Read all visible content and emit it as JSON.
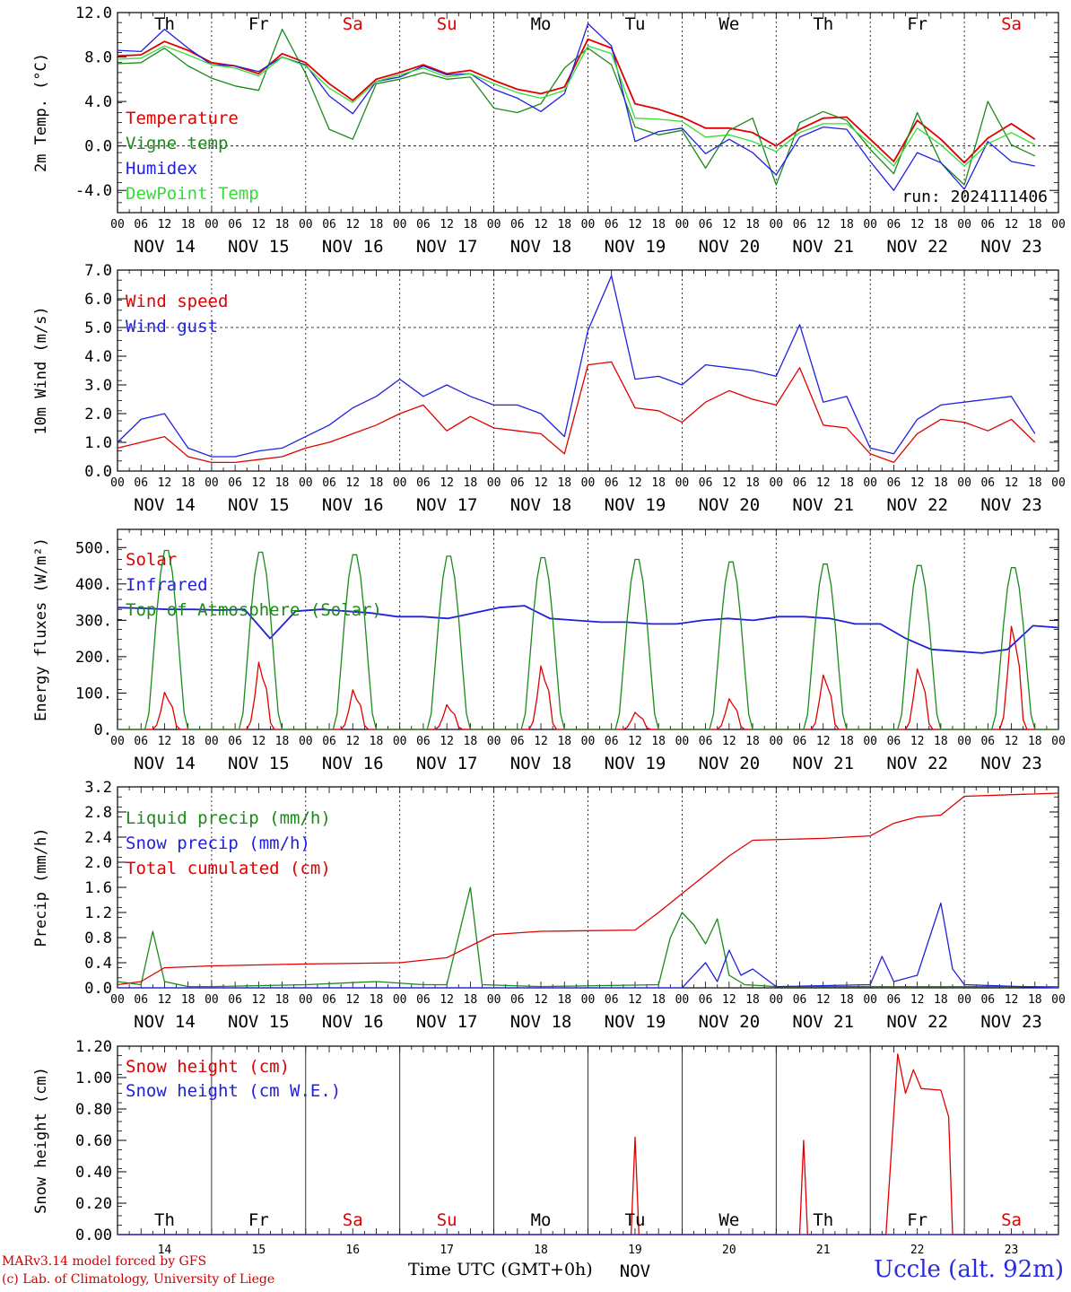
{
  "chart_data": [
    {
      "type": "line",
      "ylabel": "2m Temp. (°C)",
      "ylim": [
        -6,
        12
      ],
      "yticks": [
        "12.0",
        "8.0",
        "4.0",
        "0.0",
        "-4.0"
      ],
      "ytick_values": [
        12,
        8,
        4,
        0,
        -4
      ],
      "dashed_y": [
        0
      ],
      "day_labels": [
        "Th",
        "Fr",
        "Sa",
        "Su",
        "Mo",
        "Tu",
        "We",
        "Th",
        "Fr",
        "Sa"
      ],
      "weekend_days": [
        2,
        3,
        9
      ],
      "run_label": "run: 2024111406",
      "x": [
        0,
        6,
        12,
        18,
        24,
        30,
        36,
        42,
        48,
        54,
        60,
        66,
        72,
        78,
        84,
        90,
        96,
        102,
        108,
        114,
        120,
        126,
        132,
        138,
        144,
        150,
        156,
        162,
        168,
        174,
        180,
        186,
        192,
        198,
        204,
        210,
        216,
        222,
        228,
        234
      ],
      "series": [
        {
          "name": "Temperature",
          "color": "#e00000",
          "values": [
            8.1,
            8.2,
            9.4,
            8.6,
            7.5,
            7.2,
            6.5,
            8.3,
            7.5,
            5.6,
            4.1,
            6.0,
            6.6,
            7.3,
            6.5,
            6.8,
            5.9,
            5.1,
            4.7,
            5.3,
            9.6,
            8.8,
            3.8,
            3.3,
            2.6,
            1.6,
            1.6,
            1.2,
            0.0,
            1.5,
            2.5,
            2.6,
            0.6,
            -1.4,
            2.3,
            0.6,
            -1.5,
            0.7,
            2.0,
            0.6
          ]
        },
        {
          "name": "Vigne temp",
          "color": "#1a8a1a",
          "values": [
            7.4,
            7.5,
            8.8,
            7.2,
            6.1,
            5.4,
            5.0,
            10.5,
            6.5,
            1.5,
            0.6,
            5.6,
            6.0,
            6.6,
            6.0,
            6.2,
            3.4,
            3.0,
            3.8,
            7.0,
            8.8,
            7.3,
            1.7,
            1.0,
            1.4,
            -2.0,
            1.4,
            2.5,
            -3.5,
            2.1,
            3.1,
            2.3,
            -0.3,
            -2.5,
            3.0,
            -1.5,
            -3.5,
            4.0,
            0.1,
            -0.9
          ]
        },
        {
          "name": "Humidex",
          "color": "#2020e0",
          "values": [
            8.6,
            8.5,
            10.5,
            8.8,
            7.3,
            7.2,
            6.7,
            8.0,
            7.3,
            4.5,
            2.9,
            5.8,
            6.2,
            7.2,
            6.4,
            6.5,
            5.1,
            4.3,
            3.1,
            4.7,
            11.0,
            9.0,
            0.4,
            1.3,
            1.6,
            -0.7,
            0.6,
            -0.6,
            -2.6,
            0.8,
            1.7,
            1.5,
            -1.4,
            -4.0,
            -0.6,
            -1.5,
            -3.9,
            0.4,
            -1.4,
            -1.8
          ]
        },
        {
          "name": "DewPoint Temp",
          "color": "#33dd33",
          "values": [
            7.8,
            7.9,
            9.0,
            8.2,
            7.3,
            7.0,
            6.3,
            8.0,
            7.2,
            5.2,
            3.9,
            5.8,
            6.4,
            7.0,
            6.2,
            6.5,
            5.6,
            4.8,
            4.3,
            5.0,
            9.0,
            8.3,
            2.5,
            2.4,
            2.2,
            0.8,
            1.0,
            0.4,
            -0.5,
            1.2,
            2.0,
            2.0,
            0.2,
            -1.8,
            1.6,
            0.1,
            -1.8,
            0.2,
            1.2,
            0.1
          ]
        }
      ]
    },
    {
      "type": "line",
      "ylabel": "10m Wind (m/s)",
      "ylim": [
        0,
        7
      ],
      "yticks": [
        "7.0",
        "6.0",
        "5.0",
        "4.0",
        "3.0",
        "2.0",
        "1.0",
        "0.0"
      ],
      "ytick_values": [
        7,
        6,
        5,
        4,
        3,
        2,
        1,
        0
      ],
      "dashed_y": [
        5
      ],
      "x": [
        0,
        6,
        12,
        18,
        24,
        30,
        36,
        42,
        48,
        54,
        60,
        66,
        72,
        78,
        84,
        90,
        96,
        102,
        108,
        114,
        120,
        126,
        132,
        138,
        144,
        150,
        156,
        162,
        168,
        174,
        180,
        186,
        192,
        198,
        204,
        210,
        216,
        222,
        228,
        234
      ],
      "series": [
        {
          "name": "Wind speed",
          "color": "#e00000",
          "values": [
            0.8,
            1.0,
            1.2,
            0.5,
            0.3,
            0.3,
            0.4,
            0.5,
            0.8,
            1.0,
            1.3,
            1.6,
            2.0,
            2.3,
            1.4,
            1.9,
            1.5,
            1.4,
            1.3,
            0.6,
            3.7,
            3.8,
            2.2,
            2.1,
            1.7,
            2.4,
            2.8,
            2.5,
            2.3,
            3.6,
            1.6,
            1.5,
            0.6,
            0.3,
            1.3,
            1.8,
            1.7,
            1.4,
            1.8,
            1.0
          ]
        },
        {
          "name": "Wind gust",
          "color": "#2020e0",
          "values": [
            1.0,
            1.8,
            2.0,
            0.8,
            0.5,
            0.5,
            0.7,
            0.8,
            1.2,
            1.6,
            2.2,
            2.6,
            3.2,
            2.6,
            3.0,
            2.6,
            2.3,
            2.3,
            2.0,
            1.2,
            4.9,
            6.8,
            3.2,
            3.3,
            3.0,
            3.7,
            3.6,
            3.5,
            3.3,
            5.1,
            2.4,
            2.6,
            0.8,
            0.6,
            1.8,
            2.3,
            2.4,
            2.5,
            2.6,
            1.3
          ]
        }
      ]
    },
    {
      "type": "line",
      "ylabel": "Energy fluxes (W/m²)",
      "ylim": [
        0,
        550
      ],
      "yticks": [
        "500.",
        "400.",
        "300.",
        "200.",
        "100.",
        "0."
      ],
      "ytick_values": [
        500,
        400,
        300,
        200,
        100,
        0
      ],
      "dashed_y": [],
      "series": [
        {
          "name": "Solar",
          "color": "#e00000",
          "daily_peaks": [
            108,
            195,
            115,
            72,
            185,
            50,
            90,
            160,
            178,
            305
          ]
        },
        {
          "name": "Infrared",
          "color": "#2020e0",
          "values": [
            335,
            333,
            330,
            330,
            328,
            330,
            250,
            325,
            330,
            325,
            320,
            310,
            310,
            305,
            320,
            335,
            340,
            305,
            300,
            295,
            295,
            290,
            290,
            300,
            305,
            300,
            310,
            310,
            305,
            290,
            290,
            250,
            220,
            215,
            210,
            220,
            285,
            280
          ]
        },
        {
          "name": "Top of Atmosphere (Solar)",
          "color": "#1a8a1a",
          "daily_peaks": [
            500,
            495,
            488,
            484,
            480,
            475,
            468,
            462,
            458,
            452
          ]
        }
      ]
    },
    {
      "type": "line",
      "ylabel": "Precip (mm/h)",
      "ylim": [
        0,
        3.2
      ],
      "yticks": [
        "3.2",
        "2.8",
        "2.4",
        "2.0",
        "1.6",
        "1.2",
        "0.8",
        "0.4",
        "0.0"
      ],
      "ytick_values": [
        3.2,
        2.8,
        2.4,
        2.0,
        1.6,
        1.2,
        0.8,
        0.4,
        0.0
      ],
      "dashed_y": [],
      "series": [
        {
          "name": "Liquid precip (mm/h)",
          "color": "#1a8a1a",
          "values": [
            [
              0,
              0.1
            ],
            [
              6,
              0.05
            ],
            [
              9,
              0.9
            ],
            [
              12,
              0.1
            ],
            [
              18,
              0.02
            ],
            [
              24,
              0.02
            ],
            [
              48,
              0.05
            ],
            [
              66,
              0.1
            ],
            [
              78,
              0.05
            ],
            [
              84,
              0.05
            ],
            [
              90,
              1.6
            ],
            [
              93,
              0.05
            ],
            [
              108,
              0.02
            ],
            [
              138,
              0.05
            ],
            [
              141,
              0.8
            ],
            [
              144,
              1.2
            ],
            [
              147,
              1.0
            ],
            [
              150,
              0.7
            ],
            [
              153,
              1.1
            ],
            [
              156,
              0.2
            ],
            [
              160,
              0.05
            ],
            [
              168,
              0.02
            ],
            [
              216,
              0.02
            ],
            [
              240,
              0.02
            ]
          ]
        },
        {
          "name": "Snow precip (mm/h)",
          "color": "#2020e0",
          "values": [
            [
              0,
              0.0
            ],
            [
              144,
              0.0
            ],
            [
              150,
              0.4
            ],
            [
              153,
              0.1
            ],
            [
              156,
              0.6
            ],
            [
              159,
              0.2
            ],
            [
              162,
              0.3
            ],
            [
              168,
              0.02
            ],
            [
              192,
              0.05
            ],
            [
              195,
              0.5
            ],
            [
              198,
              0.1
            ],
            [
              204,
              0.2
            ],
            [
              210,
              1.35
            ],
            [
              213,
              0.3
            ],
            [
              216,
              0.05
            ],
            [
              240,
              0.0
            ]
          ]
        },
        {
          "name": "Total cumulated (cm)",
          "color": "#e00000",
          "values": [
            [
              0,
              0.05
            ],
            [
              6,
              0.1
            ],
            [
              12,
              0.32
            ],
            [
              24,
              0.35
            ],
            [
              48,
              0.38
            ],
            [
              72,
              0.4
            ],
            [
              84,
              0.48
            ],
            [
              96,
              0.85
            ],
            [
              108,
              0.9
            ],
            [
              132,
              0.92
            ],
            [
              138,
              1.2
            ],
            [
              144,
              1.5
            ],
            [
              150,
              1.8
            ],
            [
              156,
              2.1
            ],
            [
              162,
              2.35
            ],
            [
              180,
              2.38
            ],
            [
              192,
              2.42
            ],
            [
              198,
              2.62
            ],
            [
              204,
              2.72
            ],
            [
              210,
              2.75
            ],
            [
              216,
              3.05
            ],
            [
              240,
              3.1
            ]
          ]
        }
      ]
    },
    {
      "type": "line",
      "ylabel": "Snow height (cm)",
      "ylim": [
        0,
        1.2
      ],
      "yticks": [
        "1.20",
        "1.00",
        "0.80",
        "0.60",
        "0.40",
        "0.20",
        "0.00"
      ],
      "ytick_values": [
        1.2,
        1.0,
        0.8,
        0.6,
        0.4,
        0.2,
        0.0
      ],
      "dashed_y": [],
      "day_labels": [
        "Th",
        "Fr",
        "Sa",
        "Su",
        "Mo",
        "Tu",
        "We",
        "Th",
        "Fr",
        "Sa"
      ],
      "weekend_days": [
        2,
        3,
        9
      ],
      "day_numbers": [
        "14",
        "15",
        "16",
        "17",
        "18",
        "19",
        "20",
        "21",
        "22",
        "23"
      ],
      "series": [
        {
          "name": "Snow height (cm)",
          "color": "#e00000",
          "values": [
            [
              0,
              0
            ],
            [
              131,
              0
            ],
            [
              132,
              0.62
            ],
            [
              133,
              0
            ],
            [
              174,
              0
            ],
            [
              175,
              0.6
            ],
            [
              176,
              0
            ],
            [
              196,
              0
            ],
            [
              199,
              1.15
            ],
            [
              201,
              0.9
            ],
            [
              203,
              1.05
            ],
            [
              205,
              0.93
            ],
            [
              210,
              0.92
            ],
            [
              212,
              0.75
            ],
            [
              213,
              0
            ],
            [
              240,
              0
            ]
          ]
        },
        {
          "name": "Snow height (cm W.E.)",
          "color": "#2020e0",
          "values": [
            [
              0,
              0
            ],
            [
              240,
              0
            ]
          ]
        }
      ]
    }
  ],
  "x_axis": {
    "hour_labels": [
      "00",
      "06",
      "12",
      "18"
    ],
    "end_hour_label": "00",
    "date_labels": [
      "NOV 14",
      "NOV 15",
      "NOV 16",
      "NOV 17",
      "NOV 18",
      "NOV 19",
      "NOV 20",
      "NOV 21",
      "NOV 22",
      "NOV 23"
    ],
    "month_label": "NOV"
  },
  "colors": {
    "weekday": "#000000",
    "weekend": "#e00000"
  },
  "footer": {
    "credit_line1": "MARv3.14 model forced by GFS",
    "credit_line2": "(c) Lab. of Climatology, University of Liege",
    "xlabel": "Time UTC (GMT+0h)",
    "station": "Uccle (alt. 92m)"
  }
}
